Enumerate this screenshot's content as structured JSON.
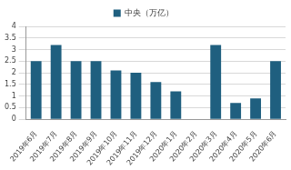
{
  "chart_data": {
    "type": "bar",
    "categories": [
      "2019年6月",
      "2019年7月",
      "2019年8月",
      "2019年9月",
      "2019年10月",
      "2019年11月",
      "2019年12月",
      "2020年1月",
      "2020年2月",
      "2020年3月",
      "2020年4月",
      "2020年5月",
      "2020年6月"
    ],
    "series": [
      {
        "name": "中央（万亿）",
        "color": "#1f5f7f",
        "values": [
          2.5,
          3.2,
          2.5,
          2.5,
          2.1,
          2.0,
          1.6,
          1.2,
          null,
          3.2,
          0.7,
          0.9,
          2.5
        ]
      }
    ],
    "ylim": [
      0,
      4
    ],
    "yticks": [
      0,
      0.5,
      1,
      1.5,
      2,
      2.5,
      3,
      3.5,
      4
    ],
    "grid": true,
    "legend": "top"
  }
}
